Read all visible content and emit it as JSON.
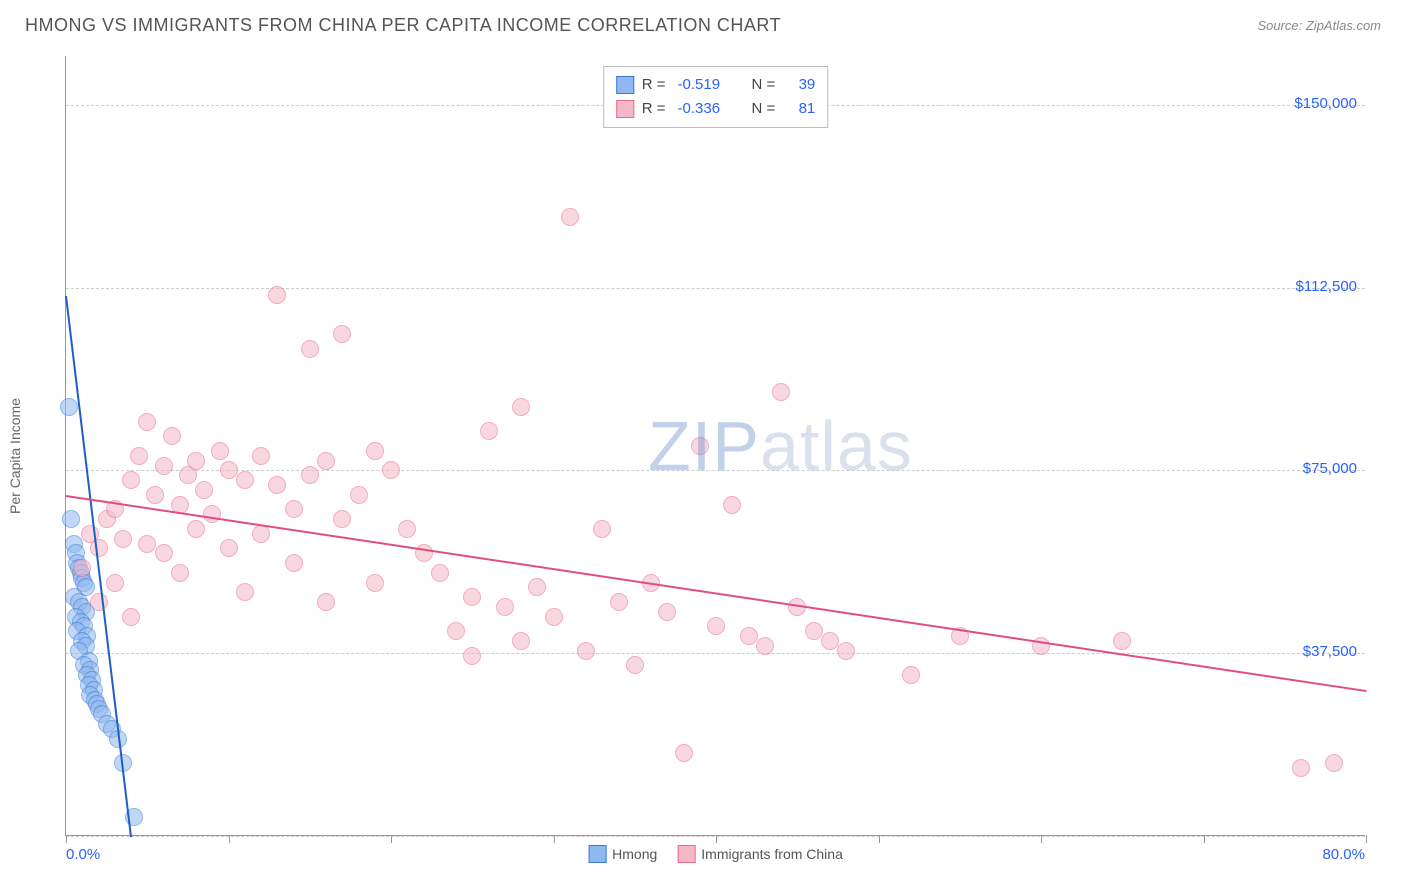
{
  "header": {
    "title": "HMONG VS IMMIGRANTS FROM CHINA PER CAPITA INCOME CORRELATION CHART",
    "source": "Source: ZipAtlas.com"
  },
  "watermark": {
    "pre": "ZIP",
    "post": "atlas"
  },
  "chart": {
    "type": "scatter",
    "ylabel": "Per Capita Income",
    "xlim": [
      0,
      80
    ],
    "ylim": [
      0,
      160000
    ],
    "xtick_positions": [
      0,
      10,
      20,
      30,
      40,
      50,
      60,
      70,
      80
    ],
    "xtick_labels": {
      "start": "0.0%",
      "end": "80.0%"
    },
    "ytick_positions": [
      37500,
      75000,
      112500,
      150000
    ],
    "ytick_labels": [
      "$37,500",
      "$75,000",
      "$112,500",
      "$150,000"
    ],
    "gridlines_y": [
      0,
      37500,
      75000,
      112500,
      150000
    ],
    "background_color": "#ffffff",
    "grid_color": "#cccccc",
    "axis_color": "#999999",
    "tick_label_color": "#2962ff",
    "marker_radius": 9,
    "marker_opacity": 0.55,
    "series": [
      {
        "name": "Hmong",
        "color_fill": "#8fb8f0",
        "color_stroke": "#3a7ad6",
        "color_line": "#1e5fc4",
        "R": "-0.519",
        "N": "39",
        "trend": {
          "x1": 0,
          "y1": 111000,
          "x2": 4,
          "y2": 0
        },
        "points": [
          [
            0.2,
            88000
          ],
          [
            0.3,
            65000
          ],
          [
            0.5,
            60000
          ],
          [
            0.6,
            58000
          ],
          [
            0.7,
            56000
          ],
          [
            0.8,
            55000
          ],
          [
            0.9,
            54000
          ],
          [
            1.0,
            53000
          ],
          [
            1.1,
            52000
          ],
          [
            1.2,
            51000
          ],
          [
            0.5,
            49000
          ],
          [
            0.8,
            48000
          ],
          [
            1.0,
            47000
          ],
          [
            1.2,
            46000
          ],
          [
            0.6,
            45000
          ],
          [
            0.9,
            44000
          ],
          [
            1.1,
            43000
          ],
          [
            0.7,
            42000
          ],
          [
            1.3,
            41000
          ],
          [
            1.0,
            40000
          ],
          [
            1.2,
            39000
          ],
          [
            0.8,
            38000
          ],
          [
            1.4,
            36000
          ],
          [
            1.1,
            35000
          ],
          [
            1.5,
            34000
          ],
          [
            1.3,
            33000
          ],
          [
            1.6,
            32000
          ],
          [
            1.4,
            31000
          ],
          [
            1.7,
            30000
          ],
          [
            1.5,
            29000
          ],
          [
            1.8,
            28000
          ],
          [
            1.9,
            27000
          ],
          [
            2.0,
            26000
          ],
          [
            2.2,
            25000
          ],
          [
            2.5,
            23000
          ],
          [
            2.8,
            22000
          ],
          [
            3.2,
            20000
          ],
          [
            3.5,
            15000
          ],
          [
            4.2,
            4000
          ]
        ]
      },
      {
        "name": "Immigrants from China",
        "color_fill": "#f5b8c8",
        "color_stroke": "#e86a8f",
        "color_line": "#e04e7d",
        "R": "-0.336",
        "N": "81",
        "trend": {
          "x1": 0,
          "y1": 70000,
          "x2": 80,
          "y2": 30000
        },
        "points": [
          [
            1,
            55000
          ],
          [
            1.5,
            62000
          ],
          [
            2,
            59000
          ],
          [
            2,
            48000
          ],
          [
            2.5,
            65000
          ],
          [
            3,
            67000
          ],
          [
            3,
            52000
          ],
          [
            3.5,
            61000
          ],
          [
            4,
            73000
          ],
          [
            4,
            45000
          ],
          [
            4.5,
            78000
          ],
          [
            5,
            60000
          ],
          [
            5,
            85000
          ],
          [
            5.5,
            70000
          ],
          [
            6,
            76000
          ],
          [
            6,
            58000
          ],
          [
            6.5,
            82000
          ],
          [
            7,
            68000
          ],
          [
            7,
            54000
          ],
          [
            7.5,
            74000
          ],
          [
            8,
            77000
          ],
          [
            8,
            63000
          ],
          [
            8.5,
            71000
          ],
          [
            9,
            66000
          ],
          [
            9.5,
            79000
          ],
          [
            10,
            75000
          ],
          [
            10,
            59000
          ],
          [
            11,
            73000
          ],
          [
            11,
            50000
          ],
          [
            12,
            78000
          ],
          [
            12,
            62000
          ],
          [
            13,
            111000
          ],
          [
            13,
            72000
          ],
          [
            14,
            67000
          ],
          [
            14,
            56000
          ],
          [
            15,
            100000
          ],
          [
            15,
            74000
          ],
          [
            16,
            77000
          ],
          [
            16,
            48000
          ],
          [
            17,
            103000
          ],
          [
            17,
            65000
          ],
          [
            18,
            70000
          ],
          [
            19,
            79000
          ],
          [
            19,
            52000
          ],
          [
            20,
            75000
          ],
          [
            21,
            63000
          ],
          [
            22,
            58000
          ],
          [
            23,
            54000
          ],
          [
            24,
            42000
          ],
          [
            25,
            49000
          ],
          [
            25,
            37000
          ],
          [
            26,
            83000
          ],
          [
            27,
            47000
          ],
          [
            28,
            88000
          ],
          [
            28,
            40000
          ],
          [
            29,
            51000
          ],
          [
            30,
            45000
          ],
          [
            31,
            127000
          ],
          [
            32,
            38000
          ],
          [
            33,
            63000
          ],
          [
            34,
            48000
          ],
          [
            35,
            35000
          ],
          [
            36,
            52000
          ],
          [
            37,
            46000
          ],
          [
            38,
            17000
          ],
          [
            39,
            80000
          ],
          [
            40,
            43000
          ],
          [
            41,
            68000
          ],
          [
            42,
            41000
          ],
          [
            43,
            39000
          ],
          [
            44,
            91000
          ],
          [
            45,
            47000
          ],
          [
            46,
            42000
          ],
          [
            47,
            40000
          ],
          [
            48,
            38000
          ],
          [
            52,
            33000
          ],
          [
            55,
            41000
          ],
          [
            60,
            39000
          ],
          [
            65,
            40000
          ],
          [
            76,
            14000
          ],
          [
            78,
            15000
          ]
        ]
      }
    ],
    "legend_top": {
      "label_R": "R =",
      "label_N": "N ="
    },
    "legend_bottom": {
      "items": [
        "Hmong",
        "Immigrants from China"
      ]
    }
  }
}
